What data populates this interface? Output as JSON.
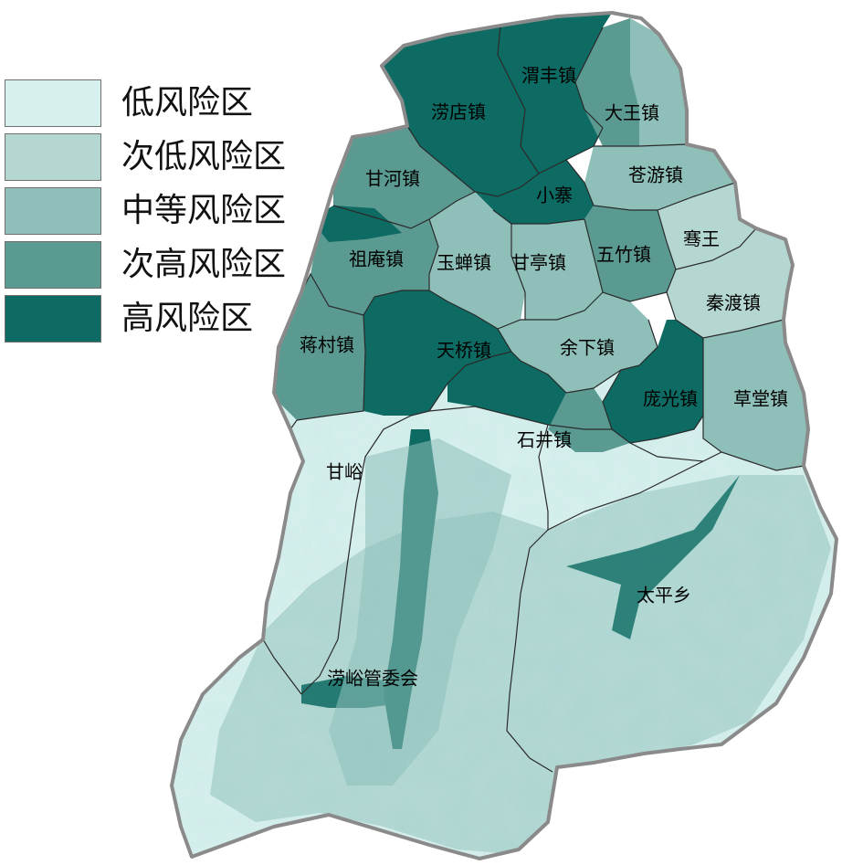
{
  "legend": {
    "items": [
      {
        "label": "低风险区",
        "color": "#d6f0ee"
      },
      {
        "label": "次低风险区",
        "color": "#b4d7d2"
      },
      {
        "label": "中等风险区",
        "color": "#8ec0b9"
      },
      {
        "label": "次高风险区",
        "color": "#5a9a91"
      },
      {
        "label": "高风险区",
        "color": "#0d6b63"
      }
    ]
  },
  "colors": {
    "boundary": "#8a8a8a",
    "district_line": "#2a2a2a",
    "terrain_low": "#d6f0ee",
    "terrain_mid": "#8ec0b9",
    "terrain_high": "#0d6b63"
  },
  "regions": {
    "lao_dian": "涝店镇",
    "wei_feng": "渭丰镇",
    "da_wang": "大王镇",
    "cang_you": "苍游镇",
    "gan_he": "甘河镇",
    "xiao_zhai": "小寨",
    "jian_wang": "骞王",
    "zu_an": "祖庵镇",
    "yu_chan": "玉蝉镇",
    "gan_ting": "甘亭镇",
    "wu_zhu": "五竹镇",
    "qin_du": "秦渡镇",
    "jiang_cun": "蒋村镇",
    "tian_qiao": "天桥镇",
    "yu_xia": "余下镇",
    "pang_guang": "庞光镇",
    "cao_tang": "草堂镇",
    "shi_jing": "石井镇",
    "gan_yu": "甘峪",
    "tai_ping": "太平乡",
    "lao_yu": "涝峪管委会"
  }
}
